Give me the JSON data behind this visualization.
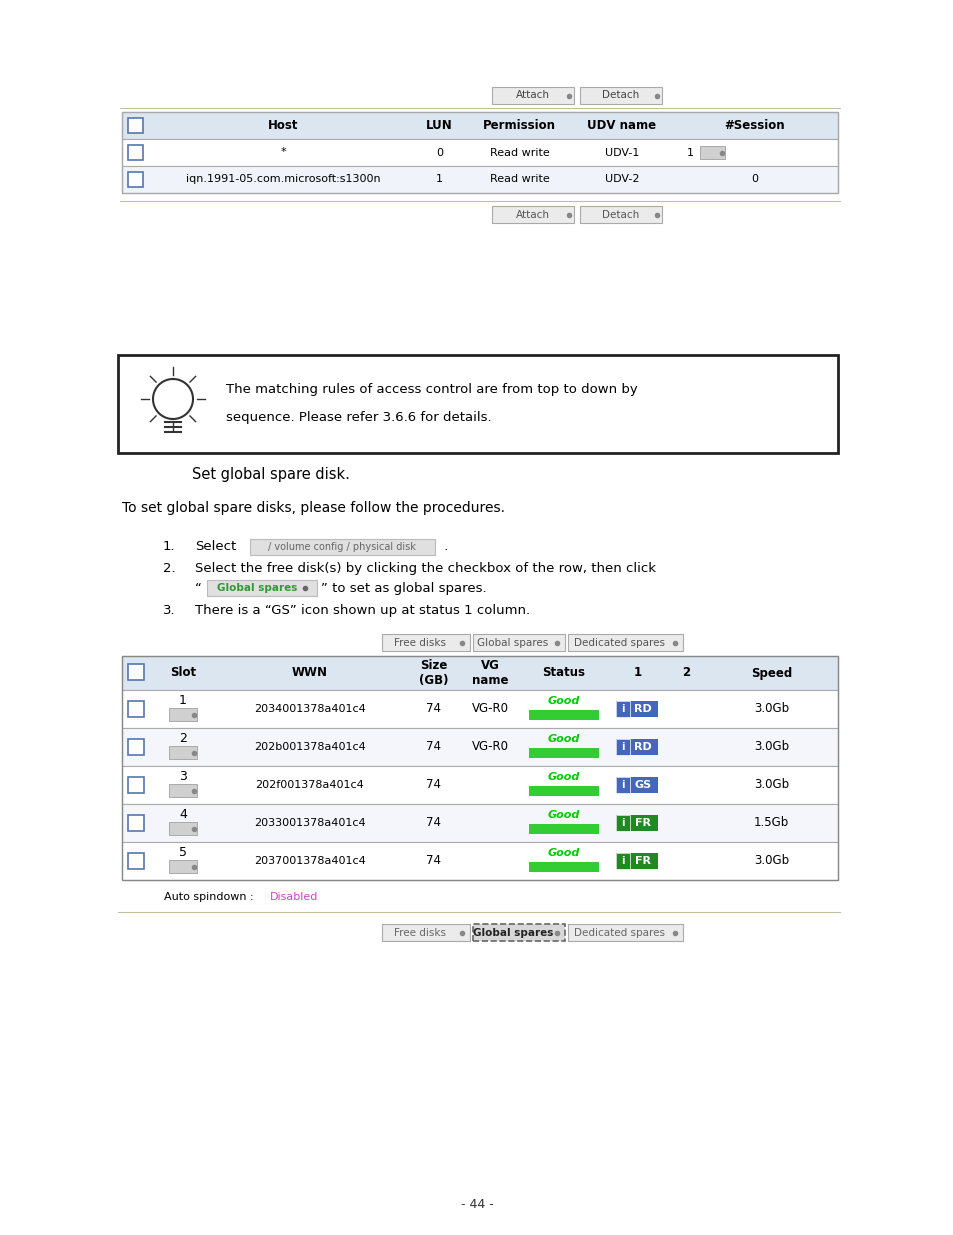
{
  "bg_color": "#ffffff",
  "page_num": "- 44 -",
  "top_table": {
    "headers": [
      "",
      "Host",
      "LUN",
      "Permission",
      "UDV name",
      "#Session"
    ],
    "rows": [
      [
        "",
        "*",
        "0",
        "Read write",
        "UDV-1",
        "1"
      ],
      [
        "",
        "iqn.1991-05.com.microsoft:s1300n",
        "1",
        "Read write",
        "UDV-2",
        "0"
      ]
    ],
    "header_bg": "#dce6f1",
    "row_bg": [
      "#ffffff",
      "#f2f5fb"
    ]
  },
  "disk_table": {
    "header_bg": "#dce6f1",
    "rows": [
      {
        "slot": "1",
        "wwn": "2034001378a401c4",
        "size": "74",
        "vg": "VG-R0",
        "status": "Good",
        "col1": "RD",
        "speed": "3.0Gb"
      },
      {
        "slot": "2",
        "wwn": "202b001378a401c4",
        "size": "74",
        "vg": "VG-R0",
        "status": "Good",
        "col1": "RD",
        "speed": "3.0Gb"
      },
      {
        "slot": "3",
        "wwn": "202f001378a401c4",
        "size": "74",
        "vg": "",
        "status": "Good",
        "col1": "GS",
        "speed": "3.0Gb"
      },
      {
        "slot": "4",
        "wwn": "2033001378a401c4",
        "size": "74",
        "vg": "",
        "status": "Good",
        "col1": "FR",
        "speed": "1.5Gb"
      },
      {
        "slot": "5",
        "wwn": "2037001378a401c4",
        "size": "74",
        "vg": "",
        "status": "Good",
        "col1": "FR",
        "speed": "3.0Gb"
      }
    ]
  },
  "colors": {
    "table_border": "#aaaaaa",
    "header_text": "#000000",
    "note_border": "#222222",
    "disabled_text": "#bb44bb"
  }
}
